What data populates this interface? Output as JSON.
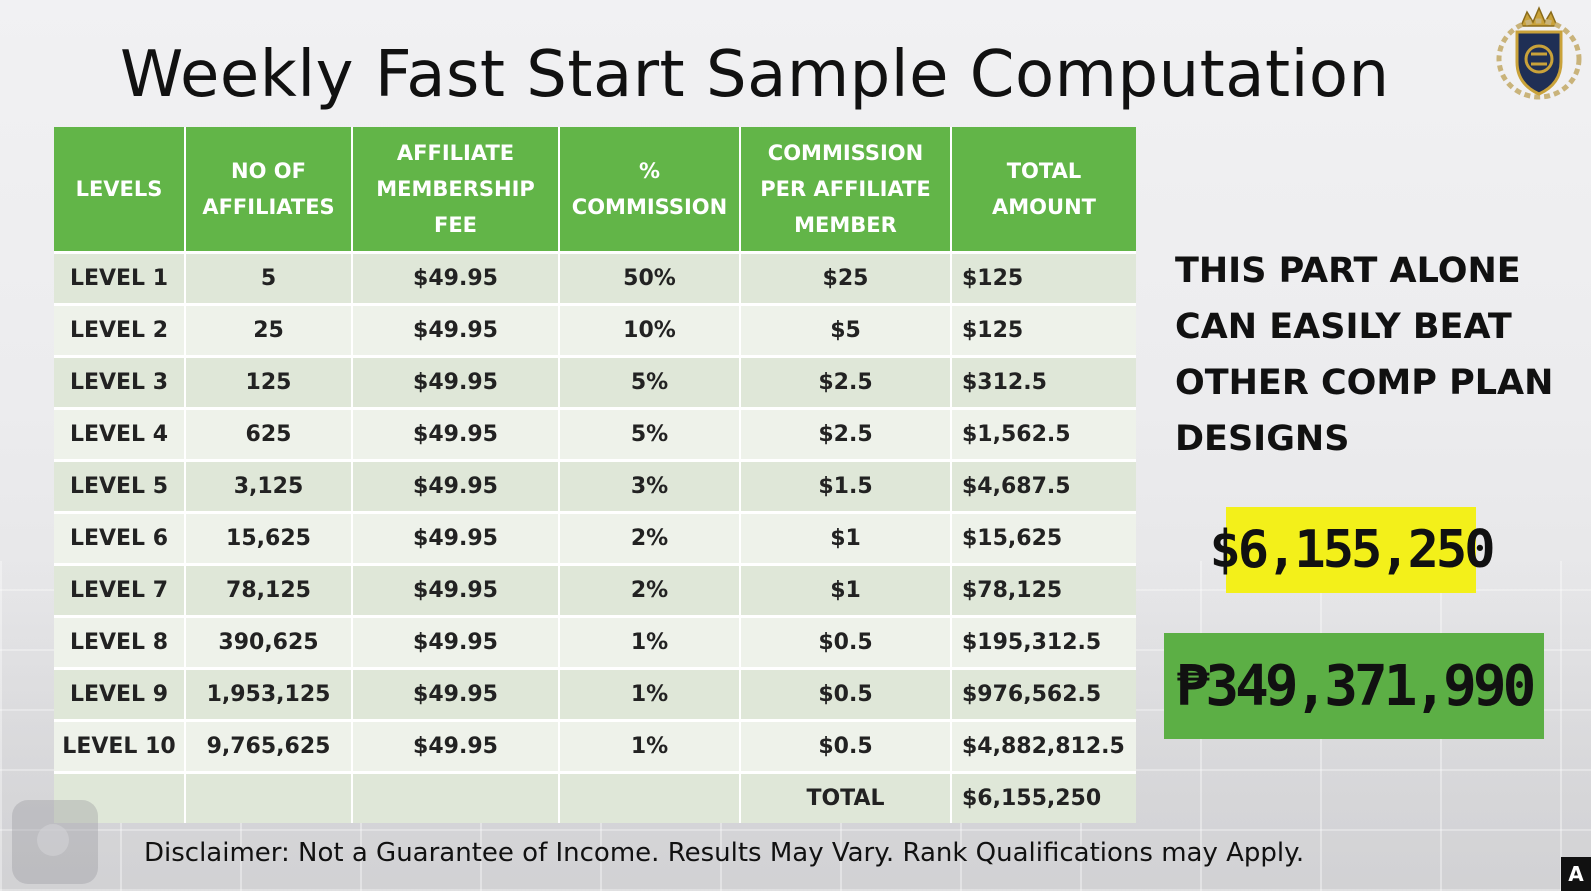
{
  "slide": {
    "title": "Weekly Fast Start Sample Computation",
    "side_text": "THIS PART ALONE CAN EASILY BEAT OTHER COMP PLAN DESIGNS",
    "usd_total": "$6,155,250",
    "php_total": "₱349,371,990",
    "disclaimer": "Disclaimer: Not a Guarantee of Income. Results May Vary. Rank Qualifications may Apply.",
    "corner_tag": "A"
  },
  "table": {
    "headers": [
      "LEVELS",
      "NO OF AFFILIATES",
      "AFFILIATE MEMBERSHIP FEE",
      "% COMMISSION",
      "COMMISSION PER AFFILIATE MEMBER",
      "TOTAL AMOUNT"
    ],
    "rows": [
      [
        "LEVEL 1",
        "5",
        "$49.95",
        "50%",
        "$25",
        "$125"
      ],
      [
        "LEVEL 2",
        "25",
        "$49.95",
        "10%",
        "$5",
        "$125"
      ],
      [
        "LEVEL 3",
        "125",
        "$49.95",
        "5%",
        "$2.5",
        "$312.5"
      ],
      [
        "LEVEL 4",
        "625",
        "$49.95",
        "5%",
        "$2.5",
        "$1,562.5"
      ],
      [
        "LEVEL 5",
        "3,125",
        "$49.95",
        "3%",
        "$1.5",
        "$4,687.5"
      ],
      [
        "LEVEL 6",
        "15,625",
        "$49.95",
        "2%",
        "$1",
        "$15,625"
      ],
      [
        "LEVEL 7",
        "78,125",
        "$49.95",
        "2%",
        "$1",
        "$78,125"
      ],
      [
        "LEVEL 8",
        "390,625",
        "$49.95",
        "1%",
        "$0.5",
        "$195,312.5"
      ],
      [
        "LEVEL 9",
        "1,953,125",
        "$49.95",
        "1%",
        "$0.5",
        "$976,562.5"
      ],
      [
        "LEVEL 10",
        "9,765,625",
        "$49.95",
        "1%",
        "$0.5",
        "$4,882,812.5"
      ]
    ],
    "total_label": "TOTAL",
    "total_value": "$6,155,250"
  },
  "colors": {
    "header_green": "#62b548",
    "highlight_yellow": "#f3f01a",
    "highlight_green": "#5caf45"
  },
  "icons": {
    "logo": "crown-shield-logo-icon",
    "camera": "camera-toggle-icon"
  }
}
